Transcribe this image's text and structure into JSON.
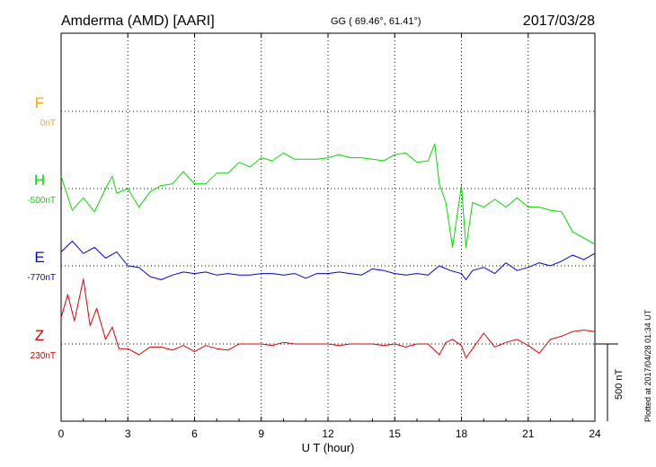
{
  "header": {
    "station": "Amderma (AMD)  [AARI]",
    "coords": "GG ( 69.46°,  61.41°)",
    "date": "2017/03/28"
  },
  "footer_note": "Plotted at 2017/04/28 01:34 UT",
  "scale_bar_label": "500 nT",
  "colors": {
    "F": "#ffa500",
    "H": "#00dd00",
    "E": "#0000dd",
    "Z": "#dd0000"
  },
  "chart_data": {
    "type": "line",
    "xlabel": "U T (hour)",
    "xlim": [
      0,
      24
    ],
    "xticks": [
      "0",
      "3",
      "6",
      "9",
      "12",
      "15",
      "18",
      "21",
      "24"
    ],
    "scale_nT": 500,
    "components": [
      {
        "name": "F",
        "baseline_label": "0nT"
      },
      {
        "name": "H",
        "baseline_label": "-500nT"
      },
      {
        "name": "E",
        "baseline_label": "-770nT"
      },
      {
        "name": "Z",
        "baseline_label": "230nT"
      }
    ],
    "series": [
      {
        "name": "H",
        "x": [
          0,
          0.5,
          1,
          1.5,
          2,
          2.3,
          2.5,
          3,
          3.5,
          4,
          4.5,
          5,
          5.5,
          6,
          6.5,
          7,
          7.5,
          8,
          8.5,
          9,
          9.5,
          10,
          10.5,
          11,
          11.5,
          12,
          12.5,
          13,
          13.5,
          14,
          14.5,
          15,
          15.5,
          16,
          16.5,
          16.8,
          17,
          17.3,
          17.6,
          18,
          18.2,
          18.5,
          19,
          19.5,
          20,
          20.5,
          21,
          21.5,
          22,
          22.5,
          23,
          23.5,
          24
        ],
        "y": [
          -420,
          -640,
          -560,
          -650,
          -500,
          -420,
          -530,
          -500,
          -620,
          -520,
          -480,
          -470,
          -390,
          -470,
          -470,
          -400,
          -400,
          -330,
          -360,
          -300,
          -320,
          -270,
          -310,
          -310,
          -310,
          -300,
          -280,
          -300,
          -300,
          -310,
          -320,
          -280,
          -270,
          -330,
          -320,
          -210,
          -470,
          -590,
          -880,
          -480,
          -880,
          -590,
          -620,
          -570,
          -620,
          -560,
          -620,
          -620,
          -640,
          -650,
          -780,
          -820,
          -860
        ]
      },
      {
        "name": "E",
        "x": [
          0,
          0.5,
          1,
          1.5,
          2,
          2.5,
          3,
          3.5,
          4,
          4.5,
          5,
          5.5,
          6,
          6.5,
          7,
          7.5,
          8,
          8.5,
          9,
          9.5,
          10,
          10.5,
          11,
          11.5,
          12,
          12.5,
          13,
          13.5,
          14,
          14.5,
          15,
          15.5,
          16,
          16.5,
          17,
          17.5,
          18,
          18.2,
          18.5,
          19,
          19.5,
          20,
          20.5,
          21,
          21.5,
          22,
          22.5,
          23,
          23.5,
          24
        ],
        "y": [
          -680,
          -610,
          -690,
          -650,
          -720,
          -680,
          -770,
          -780,
          -840,
          -860,
          -830,
          -810,
          -820,
          -810,
          -830,
          -820,
          -830,
          -830,
          -820,
          -820,
          -830,
          -820,
          -850,
          -820,
          -820,
          -810,
          -820,
          -830,
          -790,
          -800,
          -820,
          -830,
          -820,
          -830,
          -770,
          -800,
          -820,
          -860,
          -800,
          -780,
          -820,
          -750,
          -800,
          -780,
          -750,
          -770,
          -740,
          -700,
          -730,
          -690
        ]
      },
      {
        "name": "Z",
        "x": [
          0,
          0.3,
          0.6,
          1,
          1.3,
          1.6,
          2,
          2.3,
          2.6,
          3,
          3.5,
          4,
          4.5,
          5,
          5.5,
          6,
          6.5,
          7,
          7.5,
          8,
          8.5,
          9,
          9.5,
          10,
          10.5,
          11,
          11.5,
          12,
          12.5,
          13,
          13.5,
          14,
          14.5,
          15,
          15.5,
          16,
          16.5,
          17,
          17.3,
          17.6,
          18,
          18.2,
          18.5,
          19,
          19.5,
          20,
          20.5,
          21,
          21.5,
          22,
          22.5,
          23,
          23.5,
          24
        ],
        "y": [
          400,
          550,
          380,
          650,
          350,
          460,
          260,
          340,
          200,
          200,
          160,
          210,
          210,
          190,
          220,
          180,
          220,
          200,
          190,
          230,
          230,
          230,
          220,
          240,
          230,
          230,
          230,
          230,
          220,
          230,
          230,
          230,
          220,
          230,
          210,
          230,
          230,
          160,
          240,
          260,
          220,
          140,
          200,
          300,
          210,
          240,
          260,
          220,
          170,
          260,
          280,
          310,
          320,
          310
        ]
      }
    ]
  }
}
